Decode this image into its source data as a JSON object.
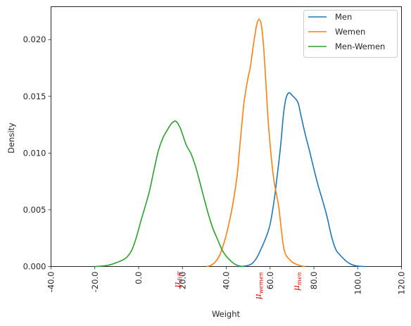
{
  "chart_data": {
    "type": "line",
    "xlabel": "Weight",
    "ylabel": "Density",
    "xlim": [
      -40,
      120
    ],
    "ylim": [
      0,
      0.0229
    ],
    "grid": false,
    "legend_position": "top-right",
    "x_ticks": [
      -40,
      -20,
      0,
      20,
      40,
      60,
      80,
      100,
      120
    ],
    "x_tick_labels": [
      "-40.0",
      "-20.0",
      "0.0",
      "20.0",
      "40.0",
      "60.0",
      "80.0",
      "100.0",
      "120.0"
    ],
    "y_ticks": [
      0,
      0.005,
      0.01,
      0.015,
      0.02
    ],
    "y_tick_labels": [
      "0.000",
      "0.005",
      "0.010",
      "0.015",
      "0.020"
    ],
    "annotations": [
      {
        "base": "μ",
        "sub": "diff",
        "x": 17.5,
        "color": "#e00000"
      },
      {
        "base": "μ",
        "sub": "wemen",
        "x": 54.5,
        "color": "#e00000"
      },
      {
        "base": "μ",
        "sub": "men",
        "x": 72,
        "color": "#e00000"
      }
    ],
    "series": [
      {
        "name": "Men",
        "color": "#1f77b4",
        "points": [
          [
            45,
            0
          ],
          [
            48,
            3e-05
          ],
          [
            50,
            0.0001
          ],
          [
            52,
            0.0003
          ],
          [
            54,
            0.0008
          ],
          [
            56,
            0.0016
          ],
          [
            58,
            0.0025
          ],
          [
            60,
            0.0037
          ],
          [
            62,
            0.006
          ],
          [
            63,
            0.0076
          ],
          [
            64,
            0.0092
          ],
          [
            65,
            0.011
          ],
          [
            66,
            0.0132
          ],
          [
            67,
            0.0146
          ],
          [
            68,
            0.0152
          ],
          [
            69,
            0.0153
          ],
          [
            70,
            0.0151
          ],
          [
            72,
            0.0147
          ],
          [
            73,
            0.0143
          ],
          [
            74,
            0.0134
          ],
          [
            76,
            0.0117
          ],
          [
            78,
            0.0102
          ],
          [
            80,
            0.0086
          ],
          [
            82,
            0.0071
          ],
          [
            84,
            0.0058
          ],
          [
            86,
            0.0044
          ],
          [
            88,
            0.0027
          ],
          [
            90,
            0.0015
          ],
          [
            92,
            0.001
          ],
          [
            94,
            0.0006
          ],
          [
            96,
            0.0003
          ],
          [
            98,
            0.00012
          ],
          [
            100,
            4e-05
          ],
          [
            103,
            0
          ]
        ]
      },
      {
        "name": "Wemen",
        "color": "#ff7f0e",
        "points": [
          [
            31,
            0
          ],
          [
            33,
            0.0001
          ],
          [
            35,
            0.0004
          ],
          [
            37,
            0.001
          ],
          [
            39,
            0.0021
          ],
          [
            41,
            0.0036
          ],
          [
            43,
            0.0055
          ],
          [
            45,
            0.0081
          ],
          [
            46,
            0.0102
          ],
          [
            47,
            0.0123
          ],
          [
            48,
            0.0143
          ],
          [
            49,
            0.0156
          ],
          [
            50,
            0.0167
          ],
          [
            51,
            0.0176
          ],
          [
            52,
            0.019
          ],
          [
            53,
            0.0203
          ],
          [
            54,
            0.0214
          ],
          [
            55,
            0.0218
          ],
          [
            56,
            0.0213
          ],
          [
            57,
            0.0195
          ],
          [
            58,
            0.0165
          ],
          [
            59,
            0.0132
          ],
          [
            60,
            0.0108
          ],
          [
            61,
            0.0088
          ],
          [
            62,
            0.0073
          ],
          [
            63,
            0.0063
          ],
          [
            64,
            0.0052
          ],
          [
            65,
            0.0035
          ],
          [
            66,
            0.0019
          ],
          [
            67,
            0.0011
          ],
          [
            68,
            0.0008
          ],
          [
            69,
            0.0006
          ],
          [
            70,
            0.0004
          ],
          [
            72,
            0.0002
          ],
          [
            74,
            6e-05
          ],
          [
            76,
            0
          ]
        ]
      },
      {
        "name": "Men-Wemen",
        "color": "#2ca02c",
        "points": [
          [
            -20,
            0
          ],
          [
            -16,
            5e-05
          ],
          [
            -13,
            0.00015
          ],
          [
            -10,
            0.00035
          ],
          [
            -7,
            0.0006
          ],
          [
            -5,
            0.0009
          ],
          [
            -3,
            0.0015
          ],
          [
            -1,
            0.0026
          ],
          [
            1,
            0.004
          ],
          [
            3,
            0.0053
          ],
          [
            5,
            0.0067
          ],
          [
            7,
            0.0085
          ],
          [
            9,
            0.0102
          ],
          [
            11,
            0.0113
          ],
          [
            13,
            0.012
          ],
          [
            15,
            0.0126
          ],
          [
            17,
            0.0128
          ],
          [
            19,
            0.0122
          ],
          [
            21,
            0.0111
          ],
          [
            22,
            0.0106
          ],
          [
            24,
            0.0099
          ],
          [
            26,
            0.0088
          ],
          [
            28,
            0.0074
          ],
          [
            30,
            0.0059
          ],
          [
            32,
            0.0045
          ],
          [
            34,
            0.0033
          ],
          [
            36,
            0.0024
          ],
          [
            38,
            0.0015
          ],
          [
            40,
            0.0009
          ],
          [
            42,
            0.0005
          ],
          [
            44,
            0.0002
          ],
          [
            46,
            5e-05
          ],
          [
            48,
            0
          ]
        ]
      }
    ]
  }
}
